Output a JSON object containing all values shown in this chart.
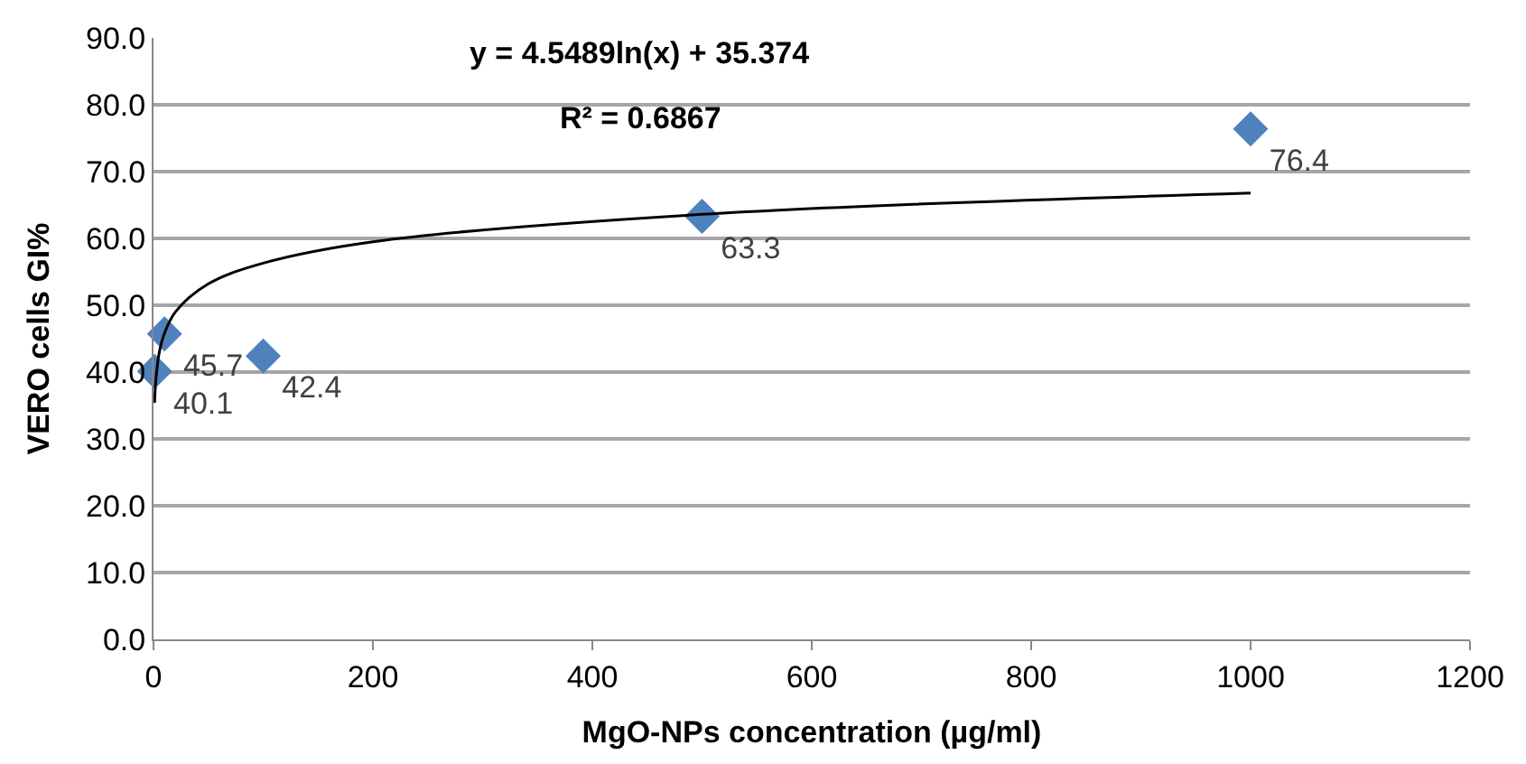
{
  "chart_data": {
    "type": "scatter",
    "xlabel": "MgO-NPs concentration (µg/ml)",
    "ylabel": "VERO cells GI%",
    "xlim": [
      0,
      1200
    ],
    "xticks": [
      0,
      200,
      400,
      600,
      800,
      1000,
      1200
    ],
    "ylim": [
      0,
      90
    ],
    "yticks": [
      {
        "value": 0,
        "label": "0.0"
      },
      {
        "value": 10,
        "label": "10.0"
      },
      {
        "value": 20,
        "label": "20.0"
      },
      {
        "value": 30,
        "label": "30.0"
      },
      {
        "value": 40,
        "label": "40.0"
      },
      {
        "value": 50,
        "label": "50.0"
      },
      {
        "value": 60,
        "label": "60.0"
      },
      {
        "value": 70,
        "label": "70.0"
      },
      {
        "value": 80,
        "label": "80.0"
      },
      {
        "value": 90,
        "label": "90.0"
      }
    ],
    "grid": "y",
    "legend": false,
    "series": [
      {
        "marker": "diamond",
        "color": "#4f81bd",
        "x": [
          1,
          10,
          100,
          500,
          1000
        ],
        "values": [
          40.1,
          45.7,
          42.4,
          63.3,
          76.4
        ],
        "value_labels": [
          "40.1",
          "45.7",
          "42.4",
          "63.3",
          "76.4"
        ]
      },
      {
        "type": "line",
        "marker": "none",
        "line_style": "solid",
        "color": "#000000",
        "x": [
          1,
          2,
          5,
          10,
          20,
          50,
          100,
          200,
          500,
          1000
        ],
        "values": [
          35.4,
          38.5,
          42.7,
          45.8,
          49.0,
          53.2,
          56.3,
          59.5,
          63.6,
          66.8
        ]
      }
    ],
    "annotations": [
      "y = 4.5489ln(x) + 35.374",
      "R² = 0.6867"
    ]
  }
}
